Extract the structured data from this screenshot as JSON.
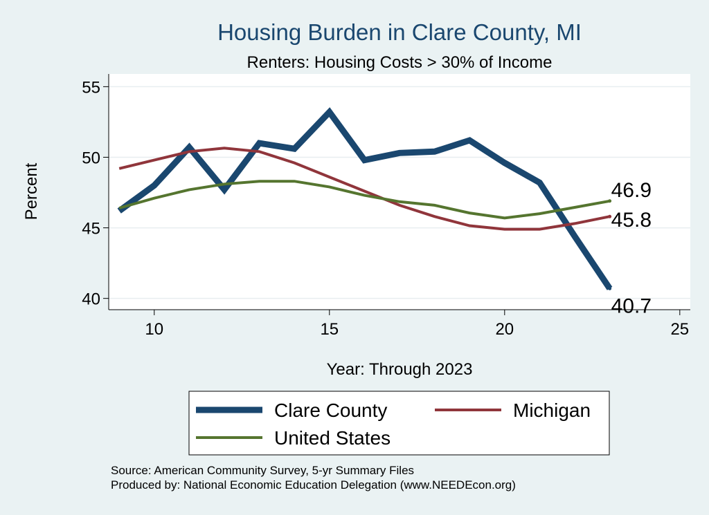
{
  "chart_data": {
    "type": "line",
    "title": "Housing Burden in Clare County, MI",
    "subtitle": "Renters: Housing Costs > 30% of Income",
    "xlabel": "Year: Through 2023",
    "ylabel": "Percent",
    "xlim": [
      8.7,
      25.3
    ],
    "ylim": [
      39.2,
      55.9
    ],
    "xticks": [
      10,
      15,
      20,
      25
    ],
    "yticks": [
      40,
      45,
      50,
      55
    ],
    "grid": true,
    "series": [
      {
        "name": "Clare County",
        "color": "#1a476f",
        "x": [
          9,
          10,
          11,
          12,
          13,
          14,
          15,
          16,
          17,
          18,
          19,
          20,
          21,
          22,
          23
        ],
        "values": [
          46.2,
          48.0,
          50.7,
          47.7,
          51.0,
          50.6,
          53.2,
          49.8,
          50.3,
          50.4,
          51.2,
          49.6,
          48.2,
          44.4,
          40.7
        ],
        "end_label": "40.7"
      },
      {
        "name": "Michigan",
        "color": "#90353b",
        "x": [
          9,
          10,
          11,
          12,
          13,
          14,
          15,
          16,
          17,
          18,
          19,
          20,
          21,
          22,
          23
        ],
        "values": [
          49.2,
          49.8,
          50.4,
          50.65,
          50.4,
          49.6,
          48.6,
          47.6,
          46.6,
          45.8,
          45.15,
          44.9,
          44.9,
          45.3,
          45.8
        ],
        "end_label": "45.8"
      },
      {
        "name": "United States",
        "color": "#55752f",
        "x": [
          9,
          10,
          11,
          12,
          13,
          14,
          15,
          16,
          17,
          18,
          19,
          20,
          21,
          22,
          23
        ],
        "values": [
          46.4,
          47.1,
          47.7,
          48.1,
          48.3,
          48.3,
          47.9,
          47.3,
          46.85,
          46.6,
          46.05,
          45.7,
          46.0,
          46.45,
          46.9
        ],
        "end_label": "46.9"
      }
    ],
    "legend": {
      "placement": "bottom",
      "order": [
        "Clare County",
        "Michigan",
        "United States"
      ]
    },
    "notes": [
      "Source: American Community Survey, 5-yr Summary Files",
      "Produced by: National Economic Education Delegation (www.NEEDEcon.org)"
    ]
  }
}
